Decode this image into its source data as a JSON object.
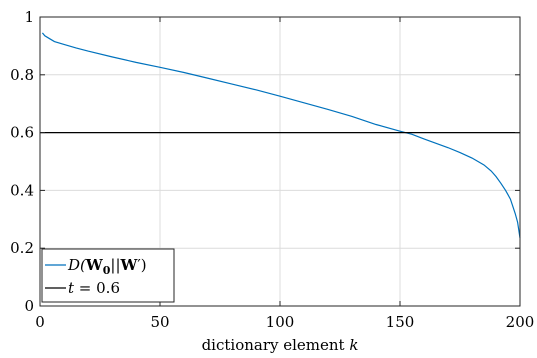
{
  "chart_data": {
    "type": "line",
    "xlabel_text": "dictionary element ",
    "xlabel_var": "k",
    "ylabel": "",
    "xlim": [
      0,
      200
    ],
    "ylim": [
      0,
      1
    ],
    "grid": true,
    "legend_placement": "bottom-left",
    "x_ticks": [
      "0",
      "50",
      "100",
      "150",
      "200"
    ],
    "y_ticks": [
      "0",
      "0.2",
      "0.4",
      "0.6",
      "0.8",
      "1"
    ],
    "series": [
      {
        "name": "D(W0||W′)",
        "color": "#0072BD",
        "x": [
          1,
          2,
          4,
          6,
          10,
          15,
          20,
          30,
          40,
          50,
          60,
          70,
          80,
          90,
          100,
          110,
          120,
          130,
          140,
          150,
          155,
          160,
          165,
          170,
          175,
          180,
          185,
          188,
          190,
          192,
          194,
          196,
          197,
          198,
          199,
          200
        ],
        "y": [
          0.945,
          0.935,
          0.925,
          0.915,
          0.905,
          0.893,
          0.882,
          0.862,
          0.843,
          0.826,
          0.808,
          0.788,
          0.768,
          0.748,
          0.726,
          0.703,
          0.68,
          0.656,
          0.628,
          0.605,
          0.594,
          0.578,
          0.563,
          0.548,
          0.531,
          0.512,
          0.488,
          0.467,
          0.448,
          0.425,
          0.4,
          0.37,
          0.345,
          0.32,
          0.29,
          0.235
        ]
      },
      {
        "name": "t = 0.6",
        "color": "#000000",
        "x": [
          0,
          200
        ],
        "y": [
          0.6,
          0.6
        ]
      }
    ],
    "legend": {
      "entry1_prefix": "D(",
      "entry1_w0": "W",
      "entry1_w0_sub": "0",
      "entry1_mid": "||",
      "entry1_w": "W",
      "entry1_suffix": "′)",
      "entry2_var": "t",
      "entry2_rest": " = 0.6"
    }
  }
}
